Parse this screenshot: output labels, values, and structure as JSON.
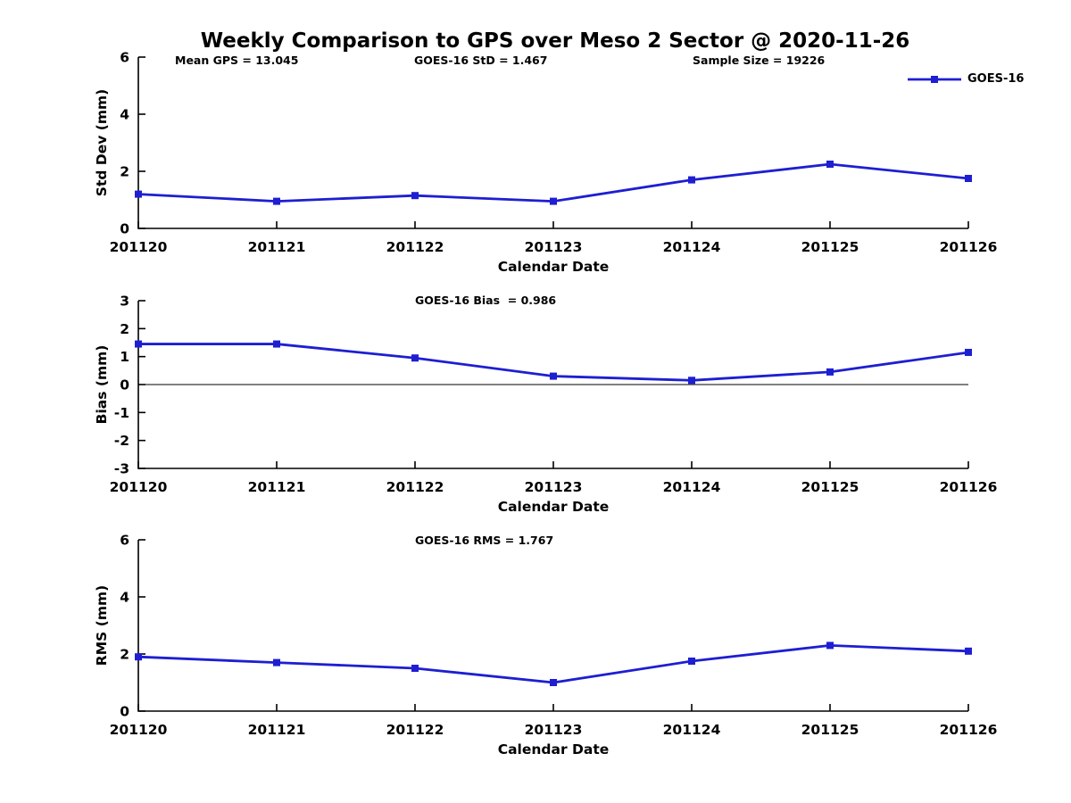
{
  "figure": {
    "title": "Weekly Comparison to GPS over Meso 2 Sector @ 2020-11-26",
    "stats": {
      "mean_gps": "Mean GPS = 13.045",
      "goes16_std": "GOES-16 StD = 1.467",
      "sample_size": "Sample Size = 19226"
    },
    "legend": {
      "label": "GOES-16"
    }
  },
  "colors": {
    "series": "#1e1ed2",
    "axis": "#000000",
    "zero_line": "#000000",
    "background": "#ffffff"
  },
  "chart_data": [
    {
      "type": "line",
      "name": "std-dev",
      "title": "",
      "categories": [
        "201120",
        "201121",
        "201122",
        "201123",
        "201124",
        "201125",
        "201126"
      ],
      "series": [
        {
          "name": "GOES-16",
          "values": [
            1.2,
            0.95,
            1.15,
            0.95,
            1.7,
            2.25,
            1.75
          ],
          "marker": "square"
        }
      ],
      "xlabel": "Calendar Date",
      "ylabel": "Std Dev (mm)",
      "ylim": [
        0,
        6
      ],
      "yticks": [
        0,
        2,
        4,
        6
      ],
      "annotation": "",
      "zero_line": false,
      "grid": false,
      "legend_position": "top-right"
    },
    {
      "type": "line",
      "name": "bias",
      "title": "",
      "categories": [
        "201120",
        "201121",
        "201122",
        "201123",
        "201124",
        "201125",
        "201126"
      ],
      "series": [
        {
          "name": "GOES-16",
          "values": [
            1.45,
            1.45,
            0.95,
            0.3,
            0.15,
            0.45,
            1.15
          ],
          "marker": "square"
        }
      ],
      "xlabel": "Calendar Date",
      "ylabel": "Bias (mm)",
      "ylim": [
        -3,
        3
      ],
      "yticks": [
        -3,
        -2,
        -1,
        0,
        1,
        2,
        3
      ],
      "annotation": "GOES-16 Bias  = 0.986",
      "zero_line": true,
      "grid": false,
      "legend_position": "none"
    },
    {
      "type": "line",
      "name": "rms",
      "title": "",
      "categories": [
        "201120",
        "201121",
        "201122",
        "201123",
        "201124",
        "201125",
        "201126"
      ],
      "series": [
        {
          "name": "GOES-16",
          "values": [
            1.9,
            1.7,
            1.5,
            1.0,
            1.75,
            2.3,
            2.1
          ],
          "marker": "square"
        }
      ],
      "xlabel": "Calendar Date",
      "ylabel": "RMS (mm)",
      "ylim": [
        0,
        6
      ],
      "yticks": [
        0,
        2,
        4,
        6
      ],
      "annotation": "GOES-16 RMS = 1.767",
      "zero_line": false,
      "grid": false,
      "legend_position": "none"
    }
  ]
}
